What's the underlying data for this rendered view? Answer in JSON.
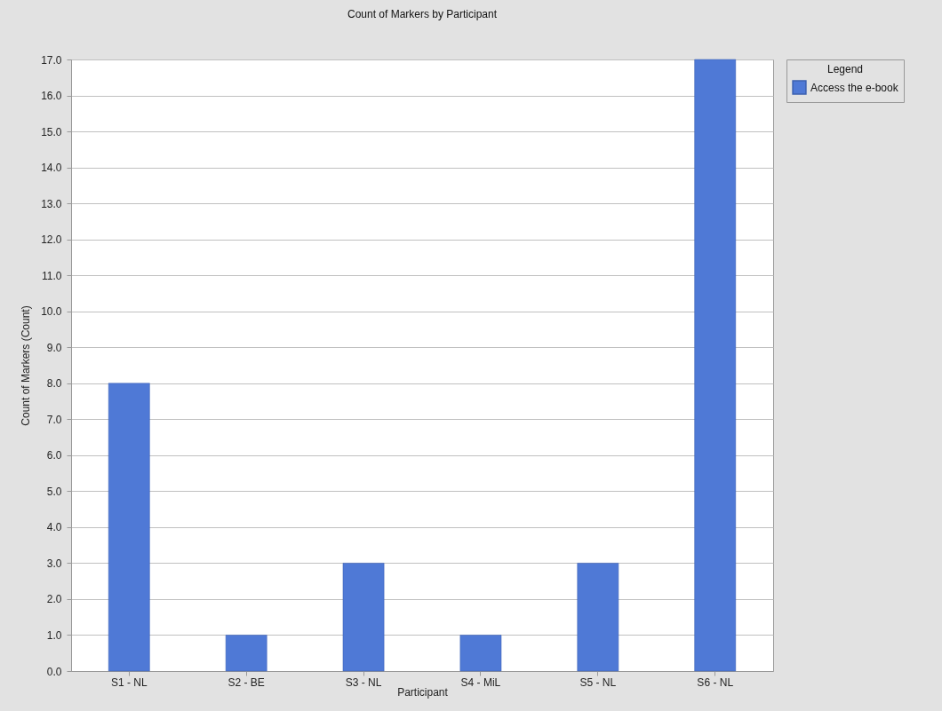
{
  "chart_data": {
    "type": "bar",
    "title": "Count of Markers by Participant",
    "xlabel": "Participant",
    "ylabel": "Count of Markers (Count)",
    "legend_title": "Legend",
    "categories": [
      "S1 - NL",
      "S2 - BE",
      "S3 - NL",
      "S4 - MiL",
      "S5 - NL",
      "S6 - NL"
    ],
    "series": [
      {
        "name": "Access the e-book",
        "color": "#4f79d6",
        "values": [
          8,
          1,
          3,
          1,
          3,
          17
        ]
      }
    ],
    "ylim": [
      0,
      17
    ],
    "yticks": [
      {
        "value": 0,
        "label": "0.0"
      },
      {
        "value": 1,
        "label": "1.0"
      },
      {
        "value": 2,
        "label": "2.0"
      },
      {
        "value": 3,
        "label": "3.0"
      },
      {
        "value": 4,
        "label": "4.0"
      },
      {
        "value": 5,
        "label": "5.0"
      },
      {
        "value": 6,
        "label": "6.0"
      },
      {
        "value": 7,
        "label": "7.0"
      },
      {
        "value": 8,
        "label": "8.0"
      },
      {
        "value": 9,
        "label": "9.0"
      },
      {
        "value": 10,
        "label": "10.0"
      },
      {
        "value": 11,
        "label": "11.0"
      },
      {
        "value": 12,
        "label": "12.0"
      },
      {
        "value": 13,
        "label": "13.0"
      },
      {
        "value": 14,
        "label": "14.0"
      },
      {
        "value": 15,
        "label": "15.0"
      },
      {
        "value": 16,
        "label": "16.0"
      },
      {
        "value": 17,
        "label": "17.0"
      }
    ],
    "grid": "y",
    "legend": "right"
  }
}
